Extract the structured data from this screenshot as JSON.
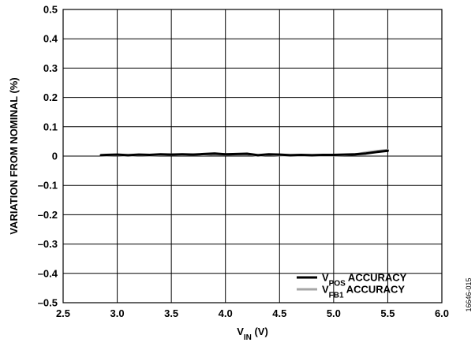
{
  "chart_data": {
    "type": "line",
    "title": "",
    "xlabel": {
      "base": "V",
      "sub": "IN",
      "rest": " (V)"
    },
    "ylabel": "VARIATION FROM NOMINAL (%)",
    "xlim": [
      2.5,
      6.0
    ],
    "ylim": [
      -0.5,
      0.5
    ],
    "x_ticks": [
      "2.5",
      "3.0",
      "3.5",
      "4.0",
      "4.5",
      "5.0",
      "5.5",
      "6.0"
    ],
    "y_ticks": [
      "0.5",
      "0.4",
      "0.3",
      "0.2",
      "0.1",
      "0",
      "–0.1",
      "–0.2",
      "–0.3",
      "–0.4",
      "–0.5"
    ],
    "grid": true,
    "legend_position": "bottom-right",
    "series": [
      {
        "name": {
          "base": "V",
          "sub": "POS",
          "rest": " ACCURACY"
        },
        "color": "#000000",
        "x": [
          2.85,
          2.9,
          3.0,
          3.1,
          3.2,
          3.3,
          3.4,
          3.5,
          3.6,
          3.7,
          3.8,
          3.9,
          4.0,
          4.1,
          4.2,
          4.3,
          4.4,
          4.5,
          4.6,
          4.7,
          4.8,
          4.9,
          5.0,
          5.1,
          5.2,
          5.3,
          5.4,
          5.5
        ],
        "y": [
          0.003,
          0.004,
          0.005,
          0.003,
          0.005,
          0.004,
          0.006,
          0.005,
          0.006,
          0.005,
          0.007,
          0.009,
          0.006,
          0.007,
          0.008,
          0.003,
          0.006,
          0.005,
          0.003,
          0.004,
          0.003,
          0.004,
          0.004,
          0.005,
          0.006,
          0.009,
          0.014,
          0.018
        ]
      },
      {
        "name": {
          "base": "V",
          "sub": "FB1",
          "rest": " ACCURACY"
        },
        "color": "#a6a6a6",
        "x": [
          2.85,
          2.9,
          3.0,
          3.1,
          3.2,
          3.3,
          3.4,
          3.5,
          3.6,
          3.7,
          3.8,
          3.9,
          4.0,
          4.1,
          4.2,
          4.3,
          4.4,
          4.5,
          4.6,
          4.7,
          4.8,
          4.9,
          5.0,
          5.1,
          5.2,
          5.3,
          5.4,
          5.5
        ],
        "y": [
          0.003,
          0.003,
          0.004,
          0.002,
          0.004,
          0.003,
          0.004,
          0.005,
          0.004,
          0.005,
          0.004,
          0.006,
          0.005,
          0.006,
          0.006,
          0.002,
          0.005,
          0.003,
          0.002,
          0.003,
          0.002,
          0.003,
          0.003,
          0.004,
          0.006,
          0.012,
          0.017,
          0.021
        ]
      }
    ]
  },
  "figure_id": "16646-015"
}
